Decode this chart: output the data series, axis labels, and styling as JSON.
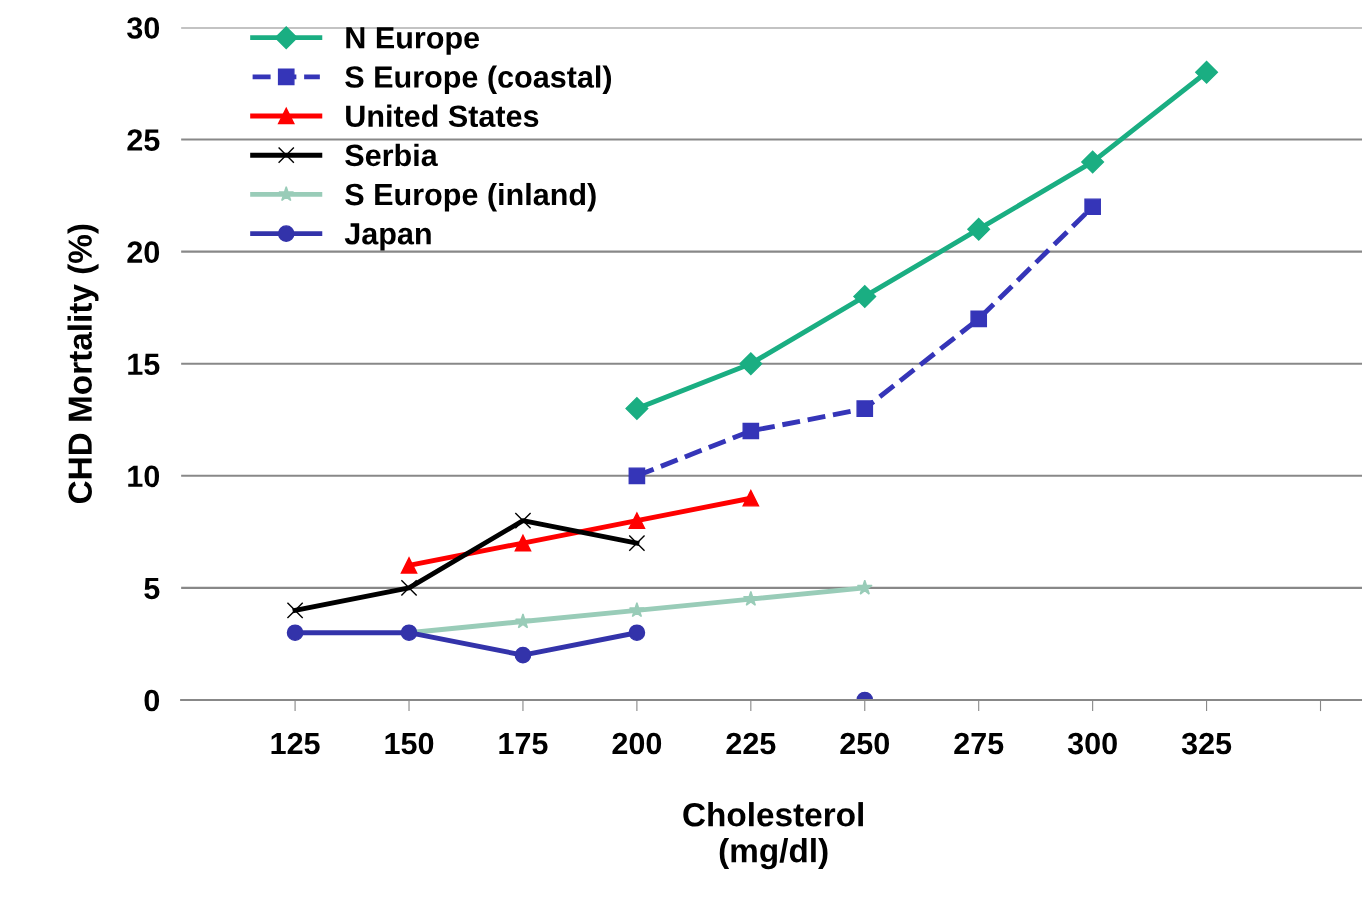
{
  "chart_data": {
    "type": "line",
    "xlabel": "Cholesterol\n(mg/dl)",
    "ylabel": "CHD Mortality (%)",
    "categories": [
      "125",
      "150",
      "175",
      "200",
      "225",
      "250",
      "275",
      "300",
      "325",
      null
    ],
    "ylim": [
      0,
      30
    ],
    "yticks": [
      0,
      5,
      10,
      15,
      20,
      25,
      30
    ],
    "grid": "y",
    "legend": "top left",
    "series": [
      {
        "name": "N Europe",
        "color": "#1aae82",
        "marker": "diamond",
        "line_style": "solid",
        "values": [
          null,
          null,
          null,
          13,
          15,
          18,
          21,
          24,
          28,
          null
        ]
      },
      {
        "name": "S Europe (coastal)",
        "color": "#3535b8",
        "marker": "square",
        "line_style": "dashed",
        "values": [
          null,
          null,
          null,
          10,
          12,
          13,
          17,
          22,
          null,
          null
        ]
      },
      {
        "name": "United States",
        "color": "#ff0000",
        "marker": "triangle",
        "line_style": "solid",
        "values": [
          null,
          6,
          7,
          8,
          9,
          null,
          null,
          null,
          null,
          null
        ]
      },
      {
        "name": "Serbia",
        "color": "#000000",
        "marker": "cross",
        "line_style": "solid",
        "values": [
          4,
          5,
          8,
          7,
          null,
          null,
          null,
          null,
          null,
          null
        ]
      },
      {
        "name": "S Europe (inland)",
        "color": "#99ccb8",
        "marker": "star",
        "line_style": "solid",
        "values": [
          null,
          3,
          3.5,
          4,
          4.5,
          5,
          null,
          null,
          null,
          null
        ]
      },
      {
        "name": "Japan",
        "color": "#3333aa",
        "marker": "circle",
        "line_style": "solid",
        "values": [
          3,
          3,
          2,
          3,
          null,
          0,
          null,
          null,
          null,
          null
        ]
      }
    ]
  }
}
